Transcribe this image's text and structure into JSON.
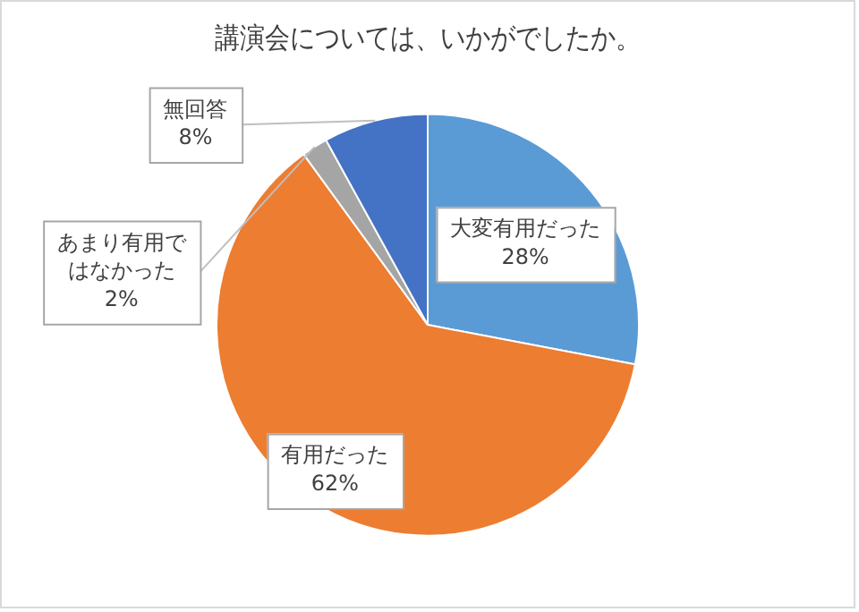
{
  "chart_data": {
    "type": "pie",
    "title": "講演会については、いかがでしたか。",
    "categories": [
      "大変有用だった",
      "有用だった",
      "あまり有用ではなかった",
      "無回答"
    ],
    "values": [
      28,
      62,
      2,
      8
    ],
    "value_labels": [
      "28%",
      "62%",
      "2%",
      "8%"
    ],
    "colors": [
      "#5b9bd5",
      "#ed7d31",
      "#a5a5a5",
      "#4472c4"
    ],
    "legend": false
  }
}
